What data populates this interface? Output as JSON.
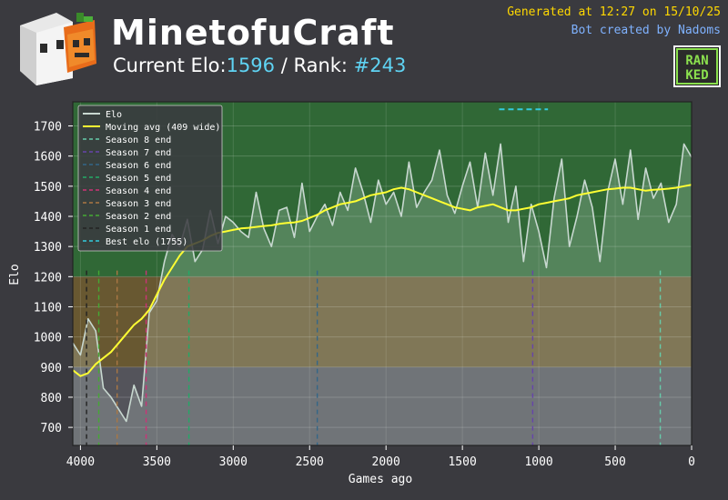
{
  "header": {
    "title": "MinetofuCraft",
    "elo_label": "Current Elo:",
    "elo_value": "1596",
    "rank_label": " / Rank: ",
    "rank_value": "#243",
    "generated": "Generated at 12:27 on 15/10/25",
    "creator": "Bot created by Nadoms",
    "badge_text_top": "RAN",
    "badge_text_bottom": "KED"
  },
  "colors": {
    "background": "#3a3a3f",
    "plot_bg": "#4b4b52",
    "elo_line": "#c8d8d0",
    "moving_avg": "#ffff33",
    "band_green": "#2e6b33",
    "band_gold": "#6b5a2e",
    "band_gray": "#55555c",
    "title_accent": "#5fd3f3",
    "generated_text": "#ffd800",
    "creator_text": "#7fb2ff"
  },
  "chart_data": {
    "type": "line",
    "xlabel": "Games ago",
    "ylabel": "Elo",
    "xlim": [
      4050,
      0
    ],
    "ylim": [
      640,
      1780
    ],
    "x_ticks": [
      4000,
      3500,
      3000,
      2500,
      2000,
      1500,
      1000,
      500,
      0
    ],
    "y_ticks": [
      700,
      800,
      900,
      1000,
      1100,
      1200,
      1300,
      1400,
      1500,
      1600,
      1700
    ],
    "grid": true,
    "legend_placement": "top-left",
    "bands": [
      {
        "from": 640,
        "to": 900,
        "color": "#55555c"
      },
      {
        "from": 900,
        "to": 1200,
        "color": "#6b5a2e"
      },
      {
        "from": 1200,
        "to": 1780,
        "color": "#2e6b33"
      }
    ],
    "series": [
      {
        "name": "Elo",
        "color": "#c8d8d0",
        "x": [
          4050,
          4000,
          3950,
          3900,
          3850,
          3800,
          3750,
          3700,
          3650,
          3600,
          3550,
          3500,
          3450,
          3400,
          3350,
          3300,
          3250,
          3200,
          3150,
          3100,
          3050,
          3000,
          2950,
          2900,
          2850,
          2800,
          2750,
          2700,
          2650,
          2600,
          2550,
          2500,
          2450,
          2400,
          2350,
          2300,
          2250,
          2200,
          2150,
          2100,
          2050,
          2000,
          1950,
          1900,
          1850,
          1800,
          1750,
          1700,
          1650,
          1600,
          1550,
          1500,
          1450,
          1400,
          1350,
          1300,
          1250,
          1200,
          1150,
          1100,
          1050,
          1000,
          950,
          900,
          850,
          800,
          750,
          700,
          650,
          600,
          550,
          500,
          450,
          400,
          350,
          300,
          250,
          200,
          150,
          100,
          50,
          0
        ],
        "y": [
          980,
          940,
          1060,
          1020,
          830,
          800,
          760,
          720,
          840,
          770,
          1080,
          1120,
          1250,
          1340,
          1300,
          1390,
          1250,
          1290,
          1420,
          1310,
          1400,
          1380,
          1350,
          1330,
          1480,
          1360,
          1300,
          1420,
          1430,
          1330,
          1510,
          1350,
          1400,
          1440,
          1370,
          1480,
          1420,
          1560,
          1480,
          1380,
          1520,
          1440,
          1480,
          1400,
          1580,
          1430,
          1480,
          1520,
          1620,
          1470,
          1410,
          1500,
          1580,
          1430,
          1610,
          1470,
          1640,
          1380,
          1500,
          1250,
          1440,
          1350,
          1230,
          1460,
          1590,
          1300,
          1400,
          1520,
          1430,
          1250,
          1480,
          1590,
          1440,
          1620,
          1390,
          1560,
          1460,
          1510,
          1380,
          1440,
          1640,
          1596
        ]
      },
      {
        "name": "Moving avg (409 wide)",
        "color": "#ffff33",
        "x": [
          4050,
          4000,
          3950,
          3900,
          3850,
          3800,
          3750,
          3700,
          3650,
          3600,
          3550,
          3500,
          3450,
          3400,
          3350,
          3300,
          3250,
          3200,
          3150,
          3100,
          3050,
          3000,
          2950,
          2900,
          2850,
          2800,
          2750,
          2700,
          2650,
          2600,
          2550,
          2500,
          2450,
          2400,
          2350,
          2300,
          2250,
          2200,
          2150,
          2100,
          2050,
          2000,
          1950,
          1900,
          1850,
          1800,
          1750,
          1700,
          1650,
          1600,
          1550,
          1500,
          1450,
          1400,
          1350,
          1300,
          1250,
          1200,
          1150,
          1100,
          1050,
          1000,
          950,
          900,
          850,
          800,
          750,
          700,
          650,
          600,
          550,
          500,
          450,
          400,
          350,
          300,
          250,
          200,
          150,
          100,
          50,
          0
        ],
        "y": [
          890,
          870,
          880,
          910,
          930,
          950,
          980,
          1010,
          1040,
          1060,
          1090,
          1140,
          1190,
          1230,
          1270,
          1300,
          1310,
          1320,
          1335,
          1345,
          1350,
          1355,
          1360,
          1362,
          1365,
          1368,
          1370,
          1375,
          1378,
          1380,
          1385,
          1395,
          1405,
          1420,
          1430,
          1440,
          1445,
          1450,
          1460,
          1470,
          1475,
          1480,
          1490,
          1495,
          1490,
          1480,
          1470,
          1460,
          1450,
          1440,
          1430,
          1425,
          1420,
          1430,
          1435,
          1440,
          1430,
          1420,
          1420,
          1425,
          1430,
          1440,
          1445,
          1450,
          1455,
          1460,
          1470,
          1475,
          1480,
          1485,
          1490,
          1492,
          1495,
          1495,
          1490,
          1485,
          1488,
          1490,
          1492,
          1495,
          1500,
          1505
        ]
      }
    ],
    "markers": [
      {
        "name": "Season 8 end",
        "x": 205,
        "color": "#66ccaa"
      },
      {
        "name": "Season 7 end",
        "x": 1040,
        "color": "#6644aa"
      },
      {
        "name": "Season 6 end",
        "x": 2450,
        "color": "#336688"
      },
      {
        "name": "Season 5 end",
        "x": 3290,
        "color": "#22aa66"
      },
      {
        "name": "Season 4 end",
        "x": 3570,
        "color": "#cc3377"
      },
      {
        "name": "Season 3 end",
        "x": 3760,
        "color": "#aa7744"
      },
      {
        "name": "Season 2 end",
        "x": 3880,
        "color": "#44aa33"
      },
      {
        "name": "Season 1 end",
        "x": 3960,
        "color": "#222222"
      }
    ],
    "best_elo": {
      "label": "Best elo (1755)",
      "value": 1755,
      "x_from": 1260,
      "x_to": 940,
      "color": "#33ccdd"
    },
    "legend": [
      {
        "label": "Elo",
        "color": "#c8d8d0",
        "style": "solid"
      },
      {
        "label": "Moving avg (409 wide)",
        "color": "#ffff33",
        "style": "solid"
      },
      {
        "label": "Season 8 end",
        "color": "#66ccaa",
        "style": "dashed"
      },
      {
        "label": "Season 7 end",
        "color": "#6644aa",
        "style": "dashed"
      },
      {
        "label": "Season 6 end",
        "color": "#336688",
        "style": "dashed"
      },
      {
        "label": "Season 5 end",
        "color": "#22aa66",
        "style": "dashed"
      },
      {
        "label": "Season 4 end",
        "color": "#cc3377",
        "style": "dashed"
      },
      {
        "label": "Season 3 end",
        "color": "#aa7744",
        "style": "dashed"
      },
      {
        "label": "Season 2 end",
        "color": "#44aa33",
        "style": "dashed"
      },
      {
        "label": "Season 1 end",
        "color": "#222222",
        "style": "dashed"
      },
      {
        "label": "Best elo (1755)",
        "color": "#33ccdd",
        "style": "dashed"
      }
    ]
  }
}
